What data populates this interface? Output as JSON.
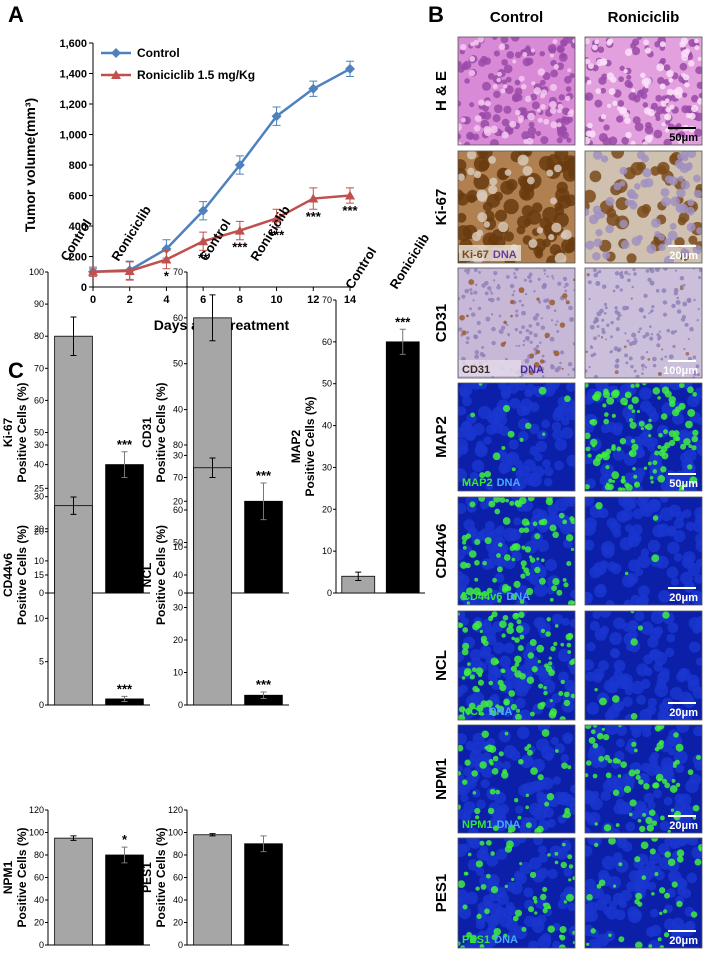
{
  "panels": [
    "A",
    "B",
    "C"
  ],
  "micrographs": {
    "columns": [
      "Control",
      "Roniciclib"
    ],
    "rows": [
      {
        "label": "H & E",
        "scale": "50μm"
      },
      {
        "label": "Ki-67",
        "stain": "Ki-67",
        "counterstain": "DNA",
        "scale": "20μm"
      },
      {
        "label": "CD31",
        "stain": "CD31",
        "counterstain": "DNA",
        "scale": "100μm"
      },
      {
        "label": "MAP2",
        "stain": "MAP2",
        "counterstain": "DNA",
        "scale": "50μm"
      },
      {
        "label": "CD44v6",
        "stain": "CD44v6",
        "counterstain": "DNA",
        "scale": "20μm"
      },
      {
        "label": "NCL",
        "stain": "NCL",
        "counterstain": "DNA",
        "scale": "20μm"
      },
      {
        "label": "NPM1",
        "stain": "NPM1",
        "counterstain": "DNA",
        "scale": "20μm"
      },
      {
        "label": "PES1",
        "stain": "PES1",
        "counterstain": "DNA",
        "scale": "20μm"
      }
    ]
  },
  "chart_data": [
    {
      "type": "line",
      "x": [
        0,
        2,
        4,
        6,
        8,
        10,
        12,
        14
      ],
      "xlim": [
        0,
        14
      ],
      "xticks": [
        0,
        2,
        4,
        6,
        8,
        10,
        12,
        14
      ],
      "ylim": [
        0,
        1600
      ],
      "yticks": [
        0,
        200,
        400,
        600,
        800,
        {
          "value": 1000,
          "label": "1,000"
        },
        {
          "value": 1200,
          "label": "1,200"
        },
        {
          "value": 1400,
          "label": "1,400"
        },
        {
          "value": 1600,
          "label": "1,600"
        }
      ],
      "xlabel": "Days after treatment",
      "ylabel": "Tumor volume(mm³)",
      "series": [
        {
          "name": "Control",
          "color": "#4f81bd",
          "marker": "diamond",
          "values": [
            100,
            110,
            250,
            500,
            800,
            1120,
            1300,
            1430
          ],
          "errors": [
            20,
            60,
            60,
            60,
            60,
            60,
            50,
            50
          ]
        },
        {
          "name": "Roniciclib 1.5 mg/Kg",
          "color": "#c0504d",
          "marker": "triangle",
          "values": [
            100,
            105,
            180,
            300,
            370,
            450,
            580,
            600
          ],
          "errors": [
            30,
            60,
            60,
            60,
            60,
            60,
            70,
            50
          ]
        }
      ],
      "significance": [
        null,
        null,
        "*",
        "**",
        "***",
        "***",
        "***",
        "***"
      ]
    },
    {
      "type": "bar",
      "categories": [
        "Control",
        "Roniciclib"
      ],
      "ylabel": [
        "Ki-67",
        "Positive Cells (%)"
      ],
      "values": [
        80,
        40
      ],
      "errors": [
        6,
        4
      ],
      "colors": [
        "#a6a6a6",
        "#000000"
      ],
      "ylim": [
        0,
        100
      ],
      "yticks": [
        0,
        10,
        20,
        30,
        40,
        50,
        60,
        70,
        80,
        90,
        100
      ],
      "significance": [
        null,
        "***"
      ]
    },
    {
      "type": "bar",
      "categories": [
        "Control",
        "Roniciclib"
      ],
      "ylabel": [
        "CD31",
        "Positive Cells (%)"
      ],
      "values": [
        60,
        20
      ],
      "errors": [
        5,
        4
      ],
      "colors": [
        "#a6a6a6",
        "#000000"
      ],
      "ylim": [
        0,
        70
      ],
      "yticks": [
        0,
        10,
        20,
        30,
        40,
        50,
        60,
        70
      ],
      "significance": [
        null,
        "***"
      ]
    },
    {
      "type": "bar",
      "categories": [
        "Control",
        "Roniciclib"
      ],
      "ylabel": [
        "MAP2",
        "Positive Cells (%)"
      ],
      "values": [
        4,
        60
      ],
      "errors": [
        1,
        3
      ],
      "colors": [
        "#a6a6a6",
        "#000000"
      ],
      "ylim": [
        0,
        70
      ],
      "yticks": [
        0,
        10,
        20,
        30,
        40,
        50,
        60,
        70
      ],
      "significance": [
        null,
        "***"
      ]
    },
    {
      "type": "bar",
      "ylabel": [
        "CD44v6",
        "Positive Cells (%)"
      ],
      "values": [
        23,
        0.7
      ],
      "errors": [
        1,
        0.3
      ],
      "colors": [
        "#a6a6a6",
        "#000000"
      ],
      "ylim": [
        0,
        30
      ],
      "yticks": [
        0,
        5,
        10,
        15,
        20,
        25,
        30
      ],
      "significance": [
        null,
        "***"
      ]
    },
    {
      "type": "bar",
      "ylabel": [
        "NCL",
        "Positive Cells (%)"
      ],
      "values": [
        73,
        3
      ],
      "errors": [
        3,
        1
      ],
      "colors": [
        "#a6a6a6",
        "#000000"
      ],
      "ylim": [
        0,
        80
      ],
      "yticks": [
        0,
        10,
        20,
        30,
        40,
        50,
        60,
        70,
        80
      ],
      "significance": [
        null,
        "***"
      ]
    },
    {
      "type": "bar",
      "ylabel": [
        "NPM1",
        "Positive Cells (%)"
      ],
      "values": [
        95,
        80
      ],
      "errors": [
        2,
        7
      ],
      "colors": [
        "#a6a6a6",
        "#000000"
      ],
      "ylim": [
        0,
        120
      ],
      "yticks": [
        0,
        20,
        40,
        60,
        80,
        100,
        120
      ],
      "significance": [
        null,
        "*"
      ]
    },
    {
      "type": "bar",
      "ylabel": [
        "PES1",
        "Positive Cells (%)"
      ],
      "values": [
        98,
        90
      ],
      "errors": [
        1,
        7
      ],
      "colors": [
        "#a6a6a6",
        "#000000"
      ],
      "ylim": [
        0,
        120
      ],
      "yticks": [
        0,
        20,
        40,
        60,
        80,
        100,
        120
      ]
    }
  ]
}
